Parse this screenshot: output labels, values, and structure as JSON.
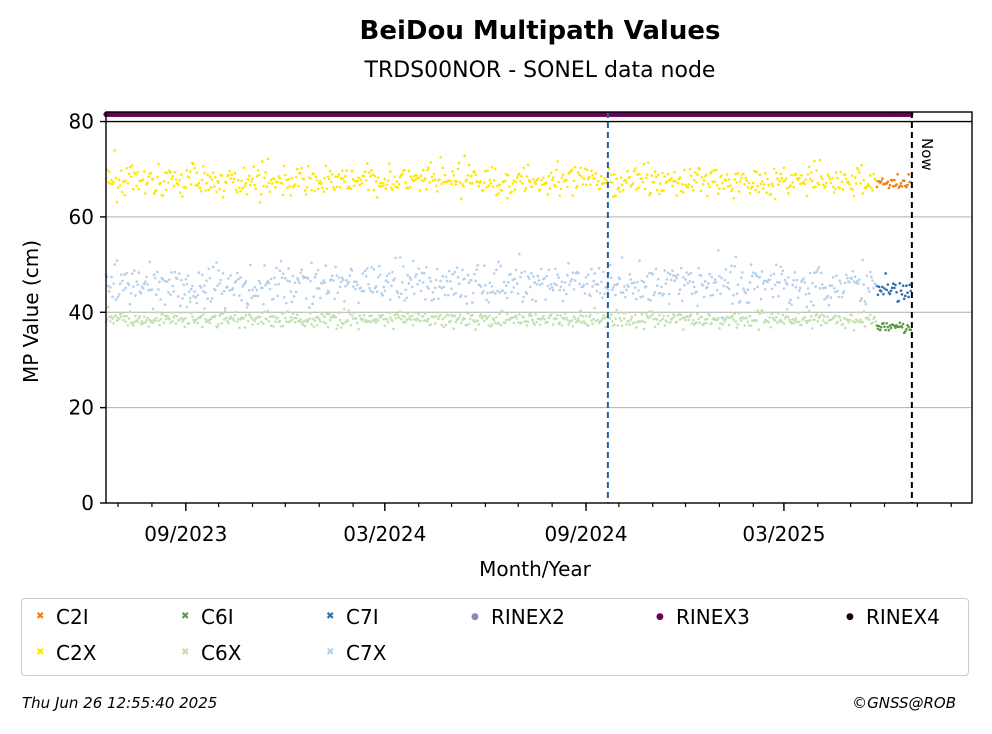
{
  "chart_data": {
    "type": "scatter",
    "title": "BeiDou Multipath Values",
    "subtitle": "TRDS00NOR - SONEL data node",
    "xlabel": "Month/Year",
    "ylabel": "MP Value (cm)",
    "ylim": [
      0,
      82
    ],
    "xlim": [
      "2023-06-20",
      "2025-08-20"
    ],
    "yticks": [
      0,
      20,
      40,
      60,
      80
    ],
    "xticks": [
      {
        "date": "2023-09-01",
        "label": "09/2023"
      },
      {
        "date": "2024-03-01",
        "label": "03/2024"
      },
      {
        "date": "2024-09-01",
        "label": "09/2024"
      },
      {
        "date": "2025-03-01",
        "label": "03/2025"
      }
    ],
    "grid": "horizontal",
    "vlines": [
      {
        "date": "2024-09-21",
        "color": "#1f5fa8",
        "style": "dashed",
        "label": ""
      },
      {
        "date": "2025-06-26",
        "color": "#000000",
        "style": "dashed",
        "label": "Now"
      }
    ],
    "series": [
      {
        "name": "C2I",
        "color": "#f07f10",
        "marker": "x",
        "start": "2025-05-25",
        "end": "2025-06-25",
        "mean": 67,
        "spread": 1.2
      },
      {
        "name": "C2X",
        "color": "#ffe600",
        "marker": "x",
        "start": "2023-06-20",
        "end": "2025-05-24",
        "mean": 67.5,
        "spread": 2.5
      },
      {
        "name": "C6I",
        "color": "#5d9a44",
        "marker": "x",
        "start": "2025-05-25",
        "end": "2025-06-25",
        "mean": 37,
        "spread": 1.0
      },
      {
        "name": "C6X",
        "color": "#c2e0b0",
        "marker": "x",
        "start": "2023-06-20",
        "end": "2025-05-24",
        "mean": 38.5,
        "spread": 1.4
      },
      {
        "name": "C7I",
        "color": "#2a6faf",
        "marker": "x",
        "start": "2025-05-25",
        "end": "2025-06-25",
        "mean": 44,
        "spread": 2.0
      },
      {
        "name": "C7X",
        "color": "#b3cfec",
        "marker": "x",
        "start": "2023-06-20",
        "end": "2025-05-24",
        "mean": 46,
        "spread": 3.5
      },
      {
        "name": "RINEX2",
        "color": "#8b85c1",
        "marker": "o",
        "start": "",
        "end": "",
        "value": null
      },
      {
        "name": "RINEX3",
        "color": "#66005a",
        "marker": "o",
        "start": "2023-06-20",
        "end": "2025-06-25",
        "value": 81.5
      },
      {
        "name": "RINEX4",
        "color": "#1a0016",
        "marker": "o",
        "start": "",
        "end": "",
        "value": null
      }
    ],
    "legend": "bottom"
  },
  "footer": {
    "timestamp": "Thu Jun 26 12:55:40 2025",
    "credit": "©GNSS@ROB"
  }
}
